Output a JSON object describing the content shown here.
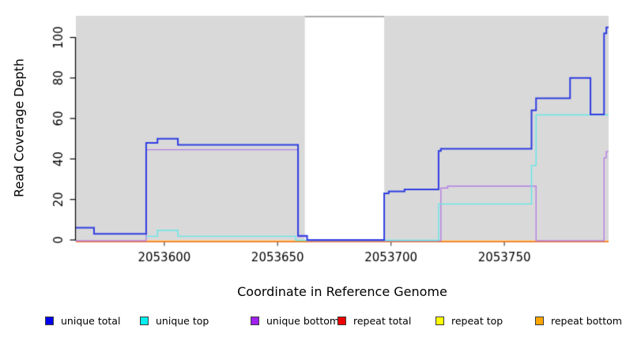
{
  "chart_data": {
    "type": "line",
    "subtype": "step-coverage",
    "xlabel": "Coordinate in Reference Genome",
    "ylabel": "Read Coverage Depth",
    "x_axis": {
      "min": 2053561,
      "max": 2053796,
      "ticks": [
        2053600,
        2053650,
        2053700,
        2053750
      ]
    },
    "y_axis": {
      "min": 0,
      "max": 111,
      "ticks": [
        0,
        20,
        40,
        60,
        80,
        100
      ]
    },
    "grid": false,
    "legend_position": "bottom",
    "background_shading": {
      "color": "#d9d9d9",
      "regions": [
        [
          2053561,
          2053662
        ],
        [
          2053697,
          2053796
        ]
      ],
      "gap_top_line_color": "#8c8c8c"
    },
    "series": [
      {
        "name": "unique total",
        "line_color": "#2f3de2",
        "legend_fill": "#0000ee",
        "points": [
          [
            2053561,
            6
          ],
          [
            2053569,
            3
          ],
          [
            2053592,
            48
          ],
          [
            2053597,
            50
          ],
          [
            2053606,
            47
          ],
          [
            2053659,
            2
          ],
          [
            2053663,
            0
          ],
          [
            2053697,
            23
          ],
          [
            2053699,
            24
          ],
          [
            2053706,
            25
          ],
          [
            2053721,
            44
          ],
          [
            2053722,
            45
          ],
          [
            2053762,
            64
          ],
          [
            2053764,
            70
          ],
          [
            2053779,
            80
          ],
          [
            2053788,
            62
          ],
          [
            2053794,
            102
          ],
          [
            2053795,
            105
          ]
        ]
      },
      {
        "name": "unique top",
        "line_color": "#63e8e8",
        "legend_fill": "#00eeee",
        "points": [
          [
            2053592,
            2
          ],
          [
            2053597,
            5
          ],
          [
            2053606,
            2
          ],
          [
            2053658,
            0
          ],
          [
            2053721,
            18
          ],
          [
            2053762,
            37
          ],
          [
            2053764,
            62
          ]
        ]
      },
      {
        "name": "unique bottom",
        "line_color": "#b37ee6",
        "legend_fill": "#a020f0",
        "points": [
          [
            2053561,
            0
          ],
          [
            2053592,
            45
          ],
          [
            2053659,
            2
          ],
          [
            2053663,
            0
          ],
          [
            2053722,
            26
          ],
          [
            2053725,
            27
          ],
          [
            2053764,
            0
          ],
          [
            2053794,
            41
          ],
          [
            2053795,
            44
          ]
        ]
      },
      {
        "name": "repeat total",
        "line_color": "#e03030",
        "legend_fill": "#ee0000",
        "points": [
          [
            2053561,
            0
          ]
        ]
      },
      {
        "name": "repeat top",
        "line_color": "#f0f000",
        "legend_fill": "#ffff00",
        "points": [
          [
            2053561,
            0
          ]
        ]
      },
      {
        "name": "repeat bottom",
        "line_color": "#ff9d1e",
        "legend_fill": "#ffa500",
        "points": [
          [
            2053561,
            0
          ]
        ]
      }
    ]
  }
}
